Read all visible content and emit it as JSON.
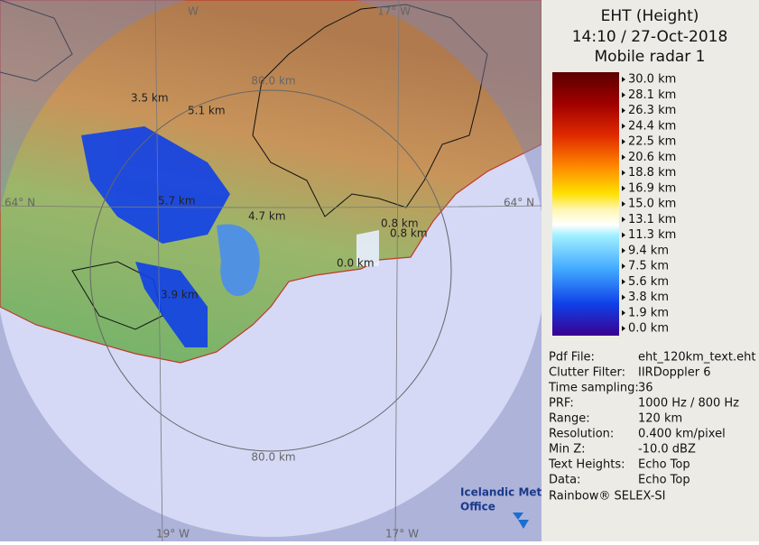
{
  "header": {
    "title": "EHT (Height)",
    "time": "14:10 / 27-Oct-2018",
    "radar": "Mobile radar 1"
  },
  "legend": {
    "labels": [
      "30.0 km",
      "28.1 km",
      "26.3 km",
      "24.4 km",
      "22.5 km",
      "20.6 km",
      "18.8 km",
      "16.9 km",
      "15.0 km",
      "13.1 km",
      "11.3 km",
      "9.4 km",
      "7.5 km",
      "5.6 km",
      "3.8 km",
      "1.9 km",
      "0.0 km"
    ]
  },
  "info": {
    "rows": [
      [
        "Pdf File:",
        "eht_120km_text.eht"
      ],
      [
        "Clutter Filter:",
        "IIRDoppler 6"
      ],
      [
        "Time sampling:",
        "36"
      ],
      [
        "PRF:",
        "1000 Hz / 800 Hz"
      ],
      [
        "Range:",
        "120 km"
      ],
      [
        "Resolution:",
        "0.400 km/pixel"
      ],
      [
        "Min Z:",
        "-10.0 dBZ"
      ],
      [
        "Text Heights:",
        "Echo Top"
      ],
      [
        "Data:",
        "Echo Top"
      ]
    ]
  },
  "footer": "Rainbow® SELEX-SI",
  "map": {
    "range_labels": [
      "80.0 km",
      "80.0 km"
    ],
    "latitude_labels": [
      "64° N",
      "64° N"
    ],
    "longitude_labels": [
      "W",
      "17° W",
      "19° W",
      "17° W"
    ],
    "height_labels": [
      "3.5 km",
      "5.1 km",
      "5.7 km",
      "4.7 km",
      "0.8 km",
      "0.8 km",
      "0.0 km",
      "3.9 km"
    ],
    "logo": [
      "Icelandic Met",
      "Office"
    ]
  }
}
